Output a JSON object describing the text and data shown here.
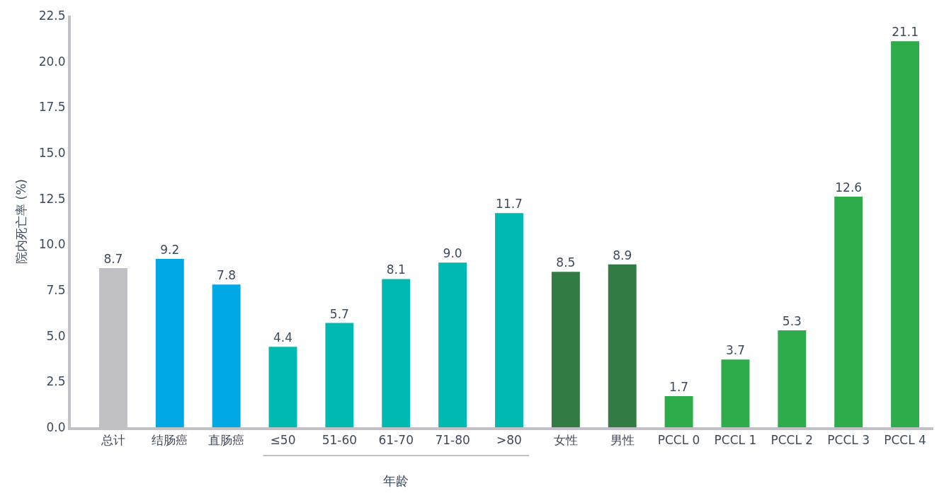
{
  "chart_data": {
    "type": "bar",
    "ylabel": "院内死亡率 (%)",
    "categories": [
      "总计",
      "结肠癌",
      "直肠癌",
      "≤50",
      "51-60",
      "61-70",
      "71-80",
      ">80",
      "女性",
      "男性",
      "PCCL 0",
      "PCCL 1",
      "PCCL 2",
      "PCCL 3",
      "PCCL 4"
    ],
    "values": [
      8.7,
      9.2,
      7.8,
      4.4,
      5.7,
      8.1,
      9.0,
      11.7,
      8.5,
      8.9,
      1.7,
      3.7,
      5.3,
      12.6,
      21.1
    ],
    "colors": [
      "#c1c0c5",
      "#00a9e4",
      "#00a9e4",
      "#00b9b0",
      "#00b9b0",
      "#00b9b0",
      "#00b9b0",
      "#00b9b0",
      "#337b44",
      "#337b44",
      "#2eab4a",
      "#2eab4a",
      "#2eab4a",
      "#2eab4a",
      "#2eab4a"
    ],
    "ylim": [
      0,
      22.5
    ],
    "yticks": [
      {
        "value": 0,
        "label": "0.0"
      },
      2.5,
      {
        "value": 5,
        "label": "5.0"
      },
      7.5,
      {
        "value": 10,
        "label": "10.0"
      },
      12.5,
      {
        "value": 15,
        "label": "15.0"
      },
      17.5,
      {
        "value": 20,
        "label": "20.0"
      },
      22.5
    ],
    "value_labels": [
      "8.7",
      "9.2",
      "7.8",
      "4.4",
      "5.7",
      "8.1",
      "9.0",
      "11.7",
      "8.5",
      "8.9",
      "1.7",
      "3.7",
      "5.3",
      "12.6",
      "21.1"
    ],
    "annotations": [
      "年龄"
    ]
  }
}
